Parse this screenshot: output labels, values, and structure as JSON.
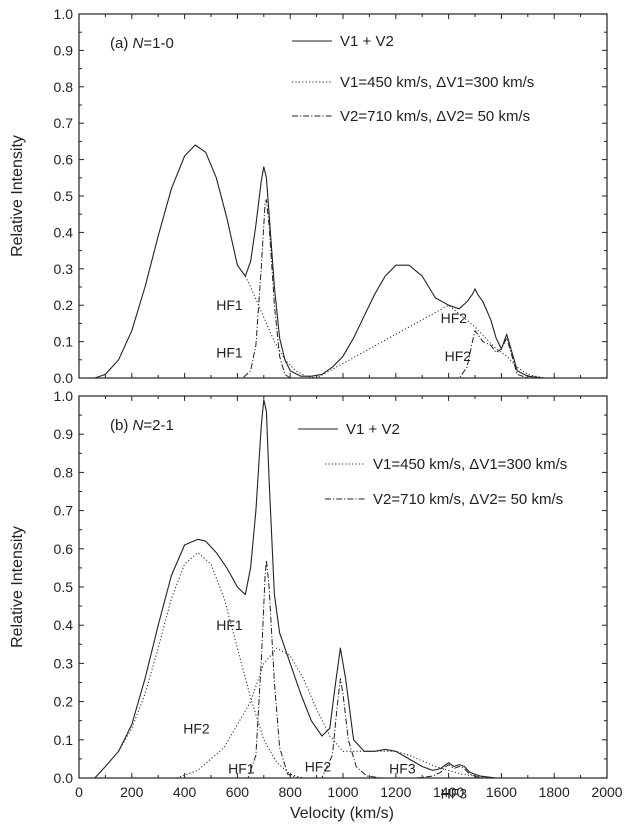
{
  "chart_data": [
    {
      "type": "line",
      "panel_label_prefix": "(a) ",
      "panel_label_italic": "N",
      "panel_label_suffix": "=1-0",
      "xlabel": "Velocity (km/s)",
      "ylabel": "Relative Intensity",
      "xlim": [
        0,
        2000
      ],
      "ylim": [
        0,
        1.0
      ],
      "yticks": [
        "0.0",
        "0.1",
        "0.2",
        "0.3",
        "0.4",
        "0.5",
        "0.6",
        "0.7",
        "0.8",
        "0.9",
        "1.0"
      ],
      "legend": [
        "V1 + V2",
        "V1=450 km/s, ΔV1=300 km/s",
        "V2=710 km/s, ΔV2= 50 km/s"
      ],
      "series": [
        {
          "name": "V1 + V2",
          "style": "solid",
          "x": [
            60,
            100,
            150,
            200,
            250,
            300,
            350,
            400,
            440,
            480,
            520,
            560,
            600,
            630,
            650,
            670,
            690,
            700,
            710,
            720,
            740,
            760,
            780,
            800,
            840,
            880,
            920,
            960,
            1000,
            1040,
            1080,
            1120,
            1160,
            1200,
            1250,
            1300,
            1350,
            1400,
            1440,
            1470,
            1490,
            1500,
            1510,
            1530,
            1560,
            1580,
            1600,
            1620,
            1640,
            1660,
            1700,
            1760,
            1870
          ],
          "y": [
            0.0,
            0.01,
            0.05,
            0.13,
            0.25,
            0.39,
            0.52,
            0.61,
            0.64,
            0.62,
            0.55,
            0.44,
            0.31,
            0.28,
            0.32,
            0.42,
            0.54,
            0.58,
            0.55,
            0.45,
            0.25,
            0.11,
            0.05,
            0.02,
            0.005,
            0.005,
            0.01,
            0.03,
            0.06,
            0.11,
            0.17,
            0.23,
            0.28,
            0.31,
            0.31,
            0.28,
            0.22,
            0.2,
            0.19,
            0.21,
            0.23,
            0.245,
            0.23,
            0.21,
            0.16,
            0.11,
            0.08,
            0.12,
            0.07,
            0.02,
            0.005,
            0.0,
            0.0
          ]
        },
        {
          "name": "V1=450 km/s, ΔV1=300 km/s",
          "style": "dotted",
          "x": [
            600,
            630,
            650,
            680,
            710,
            740,
            780,
            820,
            860,
            900,
            1400,
            1450,
            1500,
            1540,
            1580,
            1620,
            1660,
            1700,
            1760
          ],
          "y": [
            0.31,
            0.28,
            0.25,
            0.2,
            0.15,
            0.1,
            0.05,
            0.02,
            0.005,
            0.0,
            0.2,
            0.17,
            0.14,
            0.11,
            0.08,
            0.06,
            0.03,
            0.01,
            0.0
          ]
        },
        {
          "name": "V2=710 km/s, ΔV2= 50 km/s",
          "style": "dashdot",
          "x": [
            540,
            620,
            650,
            670,
            690,
            705,
            710,
            720,
            740,
            760,
            780,
            800,
            830,
            1400,
            1440,
            1470,
            1490,
            1500,
            1510,
            1530,
            1560,
            1580,
            1600,
            1620,
            1640,
            1660,
            1700
          ],
          "y": [
            0.0,
            0.0,
            0.02,
            0.09,
            0.3,
            0.48,
            0.49,
            0.42,
            0.2,
            0.06,
            0.01,
            0.0,
            0.0,
            0.0,
            0.0,
            0.03,
            0.1,
            0.13,
            0.12,
            0.1,
            0.09,
            0.07,
            0.08,
            0.11,
            0.06,
            0.01,
            0.0
          ]
        }
      ],
      "annotations": [
        {
          "text": "HF1",
          "x": 570,
          "y": 0.2
        },
        {
          "text": "HF1",
          "x": 570,
          "y": 0.07
        },
        {
          "text": "HF2",
          "x": 1420,
          "y": 0.165
        },
        {
          "text": "HF2",
          "x": 1435,
          "y": 0.06
        }
      ]
    },
    {
      "type": "line",
      "panel_label_prefix": "(b) ",
      "panel_label_italic": "N",
      "panel_label_suffix": "=2-1",
      "xlabel": "Velocity (km/s)",
      "ylabel": "Relative Intensity",
      "xlim": [
        0,
        2000
      ],
      "ylim": [
        0,
        1.0
      ],
      "xticks": [
        "0",
        "200",
        "400",
        "600",
        "800",
        "1000",
        "1200",
        "1400",
        "1600",
        "1800",
        "2000"
      ],
      "yticks": [
        "0.0",
        "0.1",
        "0.2",
        "0.3",
        "0.4",
        "0.5",
        "0.6",
        "0.7",
        "0.8",
        "0.9",
        "1.0"
      ],
      "legend": [
        "V1 + V2",
        "V1=450 km/s, ΔV1=300 km/s",
        "V2=710 km/s, ΔV2= 50 km/s"
      ],
      "series": [
        {
          "name": "V1 + V2",
          "style": "solid",
          "x": [
            60,
            100,
            150,
            200,
            250,
            300,
            350,
            400,
            450,
            480,
            520,
            560,
            600,
            630,
            650,
            670,
            690,
            700,
            710,
            720,
            740,
            760,
            800,
            840,
            880,
            920,
            950,
            970,
            990,
            1010,
            1040,
            1080,
            1120,
            1160,
            1200,
            1250,
            1300,
            1340,
            1370,
            1390,
            1400,
            1420,
            1440,
            1460,
            1480,
            1520,
            1580,
            1670
          ],
          "y": [
            0.0,
            0.03,
            0.07,
            0.14,
            0.26,
            0.4,
            0.53,
            0.61,
            0.625,
            0.62,
            0.59,
            0.55,
            0.5,
            0.48,
            0.55,
            0.7,
            0.92,
            0.99,
            0.96,
            0.78,
            0.48,
            0.38,
            0.3,
            0.22,
            0.15,
            0.11,
            0.13,
            0.24,
            0.34,
            0.26,
            0.1,
            0.07,
            0.07,
            0.075,
            0.07,
            0.05,
            0.03,
            0.02,
            0.025,
            0.035,
            0.04,
            0.03,
            0.035,
            0.03,
            0.015,
            0.005,
            0.0,
            0.0
          ]
        },
        {
          "name": "V1=450 km/s, ΔV1=300 km/s",
          "style": "dotted",
          "x": [
            150,
            200,
            250,
            300,
            350,
            400,
            450,
            500,
            550,
            600,
            650,
            700,
            750,
            800,
            850,
            900,
            950,
            1000,
            1100,
            370,
            450,
            550,
            650,
            700,
            750,
            800,
            850,
            900,
            950,
            1000,
            1050,
            1100,
            1150,
            1200,
            1250,
            1300,
            1350,
            1400,
            1450,
            1500,
            1550
          ],
          "y": [
            0.07,
            0.13,
            0.22,
            0.34,
            0.47,
            0.56,
            0.59,
            0.56,
            0.47,
            0.34,
            0.21,
            0.1,
            0.04,
            0.01,
            0.0,
            0.0,
            0.0,
            0.0,
            0.0,
            0.0,
            0.02,
            0.08,
            0.2,
            0.3,
            0.34,
            0.32,
            0.26,
            0.18,
            0.11,
            0.07,
            0.07,
            0.07,
            0.07,
            0.07,
            0.06,
            0.045,
            0.03,
            0.02,
            0.01,
            0.005,
            0.0
          ],
          "breaks": [
            19
          ]
        },
        {
          "name": "V2=710 km/s, ΔV2= 50 km/s",
          "style": "dashdot",
          "x": [
            540,
            640,
            670,
            690,
            705,
            710,
            720,
            740,
            760,
            790,
            830,
            880,
            920,
            960,
            980,
            990,
            1000,
            1020,
            1050,
            1090,
            1150,
            1280,
            1340,
            1370,
            1390,
            1400,
            1420,
            1440,
            1460,
            1480,
            1520
          ],
          "y": [
            0.0,
            0.0,
            0.06,
            0.3,
            0.53,
            0.57,
            0.5,
            0.25,
            0.08,
            0.01,
            0.0,
            0.0,
            0.0,
            0.06,
            0.2,
            0.26,
            0.22,
            0.1,
            0.03,
            0.005,
            0.0,
            0.0,
            0.005,
            0.015,
            0.03,
            0.035,
            0.025,
            0.03,
            0.025,
            0.01,
            0.0
          ]
        }
      ],
      "annotations": [
        {
          "text": "HF1",
          "x": 570,
          "y": 0.4
        },
        {
          "text": "HF2",
          "x": 445,
          "y": 0.13
        },
        {
          "text": "HF1",
          "x": 615,
          "y": 0.025
        },
        {
          "text": "HF2",
          "x": 905,
          "y": 0.03
        },
        {
          "text": "HF3",
          "x": 1225,
          "y": 0.025
        },
        {
          "text": "HF3",
          "x": 1420,
          "y": -0.04
        }
      ]
    }
  ]
}
